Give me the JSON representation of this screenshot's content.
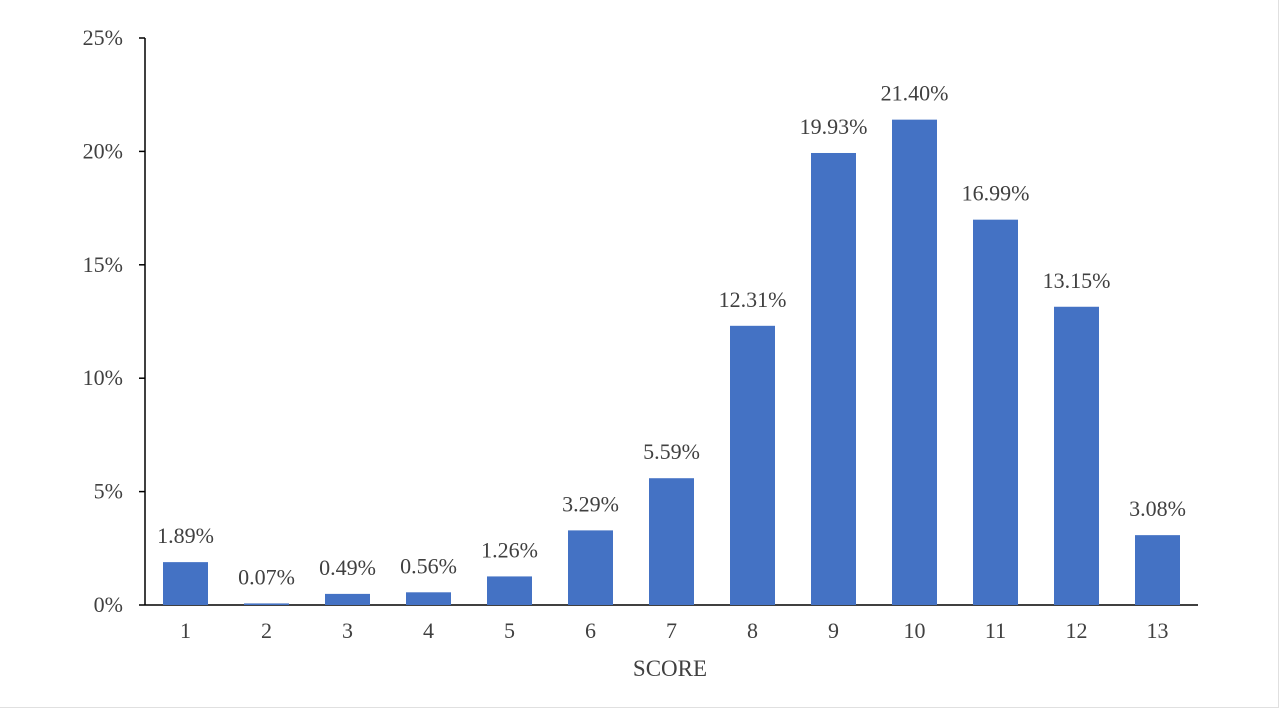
{
  "chart_data": {
    "type": "bar",
    "categories": [
      "1",
      "2",
      "3",
      "4",
      "5",
      "6",
      "7",
      "8",
      "9",
      "10",
      "11",
      "12",
      "13"
    ],
    "values": [
      1.89,
      0.07,
      0.49,
      0.56,
      1.26,
      3.29,
      5.59,
      12.31,
      19.93,
      21.4,
      16.99,
      13.15,
      3.08
    ],
    "data_labels": [
      "1.89%",
      "0.07%",
      "0.49%",
      "0.56%",
      "1.26%",
      "3.29%",
      "5.59%",
      "12.31%",
      "19.93%",
      "21.40%",
      "16.99%",
      "13.15%",
      "3.08%"
    ],
    "title": "",
    "xlabel": "SCORE",
    "ylabel": "",
    "ylim": [
      0,
      25
    ],
    "y_ticks": [
      0,
      5,
      10,
      15,
      20,
      25
    ],
    "y_tick_labels": [
      "0%",
      "5%",
      "10%",
      "15%",
      "20%",
      "25%"
    ],
    "grid": false,
    "legend": "none",
    "bar_color": "#4472C4",
    "axis_color": "#000000",
    "text_color": "#404040"
  }
}
